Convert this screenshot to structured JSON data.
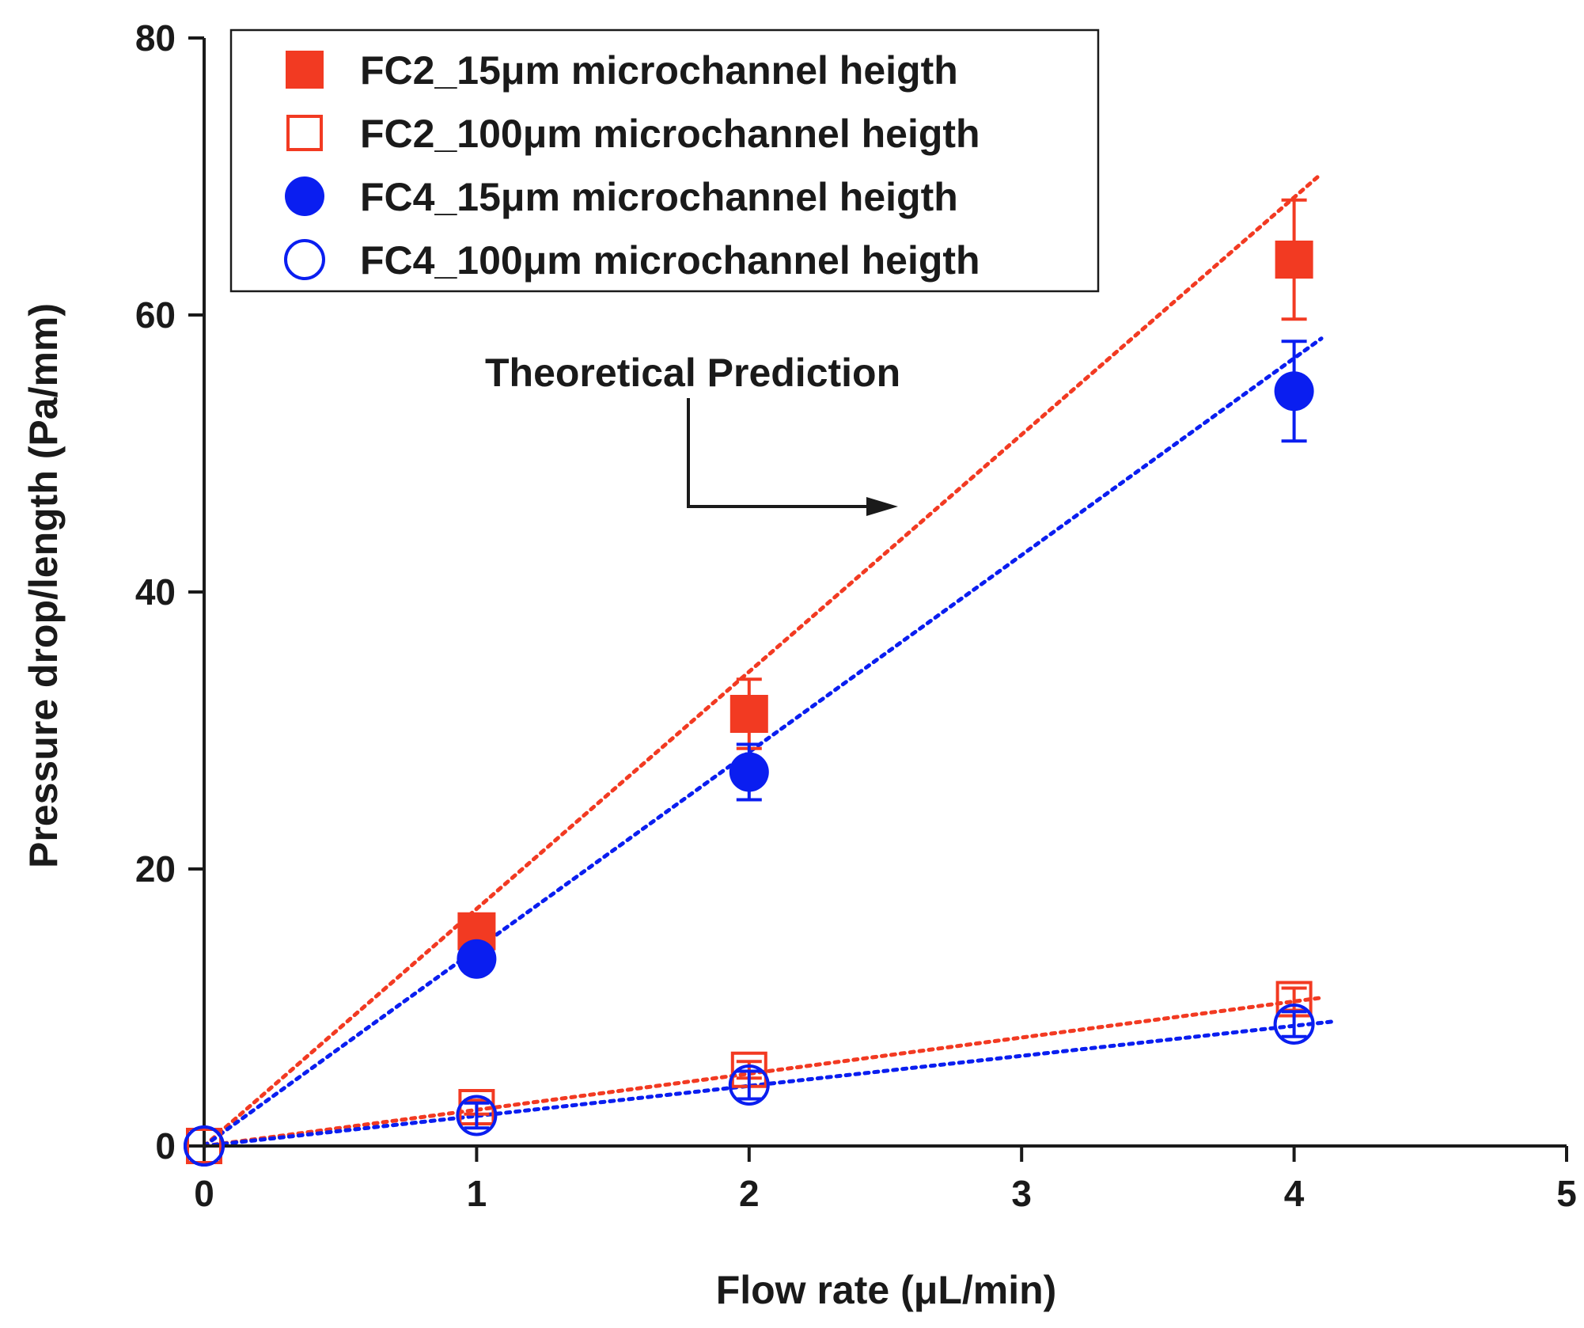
{
  "chart_data": {
    "type": "scatter",
    "title": "",
    "xlabel": "Flow rate (μL/min)",
    "ylabel": "Pressure drop/length (Pa/mm)",
    "xlim": [
      0,
      5
    ],
    "ylim": [
      0,
      80
    ],
    "xticks": [
      0,
      1,
      2,
      3,
      4,
      5
    ],
    "yticks": [
      0,
      20,
      40,
      60,
      80
    ],
    "xtick_labels": [
      "0",
      "1",
      "2",
      "3",
      "4",
      "5"
    ],
    "ytick_labels": [
      "0",
      "20",
      "40",
      "60",
      "80"
    ],
    "grid": false,
    "legend_position": "top-left",
    "series": [
      {
        "name": "FC2_15μm microchannel heigth",
        "marker": "square-filled",
        "color": "#f23a22",
        "x": [
          0,
          1,
          2,
          4
        ],
        "y": [
          0,
          15.5,
          31.2,
          64
        ],
        "err": [
          0,
          1.2,
          2.5,
          4.3
        ]
      },
      {
        "name": "FC2_100μm microchannel heigth",
        "marker": "square-open",
        "color": "#f23a22",
        "x": [
          0,
          1,
          2,
          4
        ],
        "y": [
          0,
          2.8,
          5.5,
          10.6
        ],
        "err": [
          0,
          0.5,
          0.6,
          0.8
        ]
      },
      {
        "name": "FC4_15μm microchannel heigth",
        "marker": "circle-filled",
        "color": "#0a1ef0",
        "x": [
          0,
          1,
          2,
          4
        ],
        "y": [
          0,
          13.5,
          27,
          54.5
        ],
        "err": [
          0,
          1.0,
          2.0,
          3.6
        ]
      },
      {
        "name": "FC4_100μm microchannel heigth",
        "marker": "circle-open",
        "color": "#0a1ef0",
        "x": [
          0,
          1,
          2,
          4
        ],
        "y": [
          0,
          2.2,
          4.4,
          8.8
        ],
        "err": [
          0,
          0.9,
          1.0,
          0.9
        ]
      }
    ],
    "theoretical_lines": [
      {
        "series": "FC2_15μm microchannel heigth",
        "color": "#f23a22",
        "x": [
          0,
          4.1
        ],
        "y": [
          0,
          70.2
        ]
      },
      {
        "series": "FC4_15μm microchannel heigth",
        "color": "#0a1ef0",
        "x": [
          0,
          4.1
        ],
        "y": [
          0,
          58.3
        ]
      },
      {
        "series": "FC2_100μm microchannel heigth",
        "color": "#f23a22",
        "x": [
          0,
          4.1
        ],
        "y": [
          0,
          10.7
        ]
      },
      {
        "series": "FC4_100μm microchannel heigth",
        "color": "#0a1ef0",
        "x": [
          0,
          4.15
        ],
        "y": [
          0,
          9.0
        ]
      }
    ],
    "annotations": [
      {
        "text": "Theoretical Prediction",
        "arrow": true
      }
    ]
  }
}
